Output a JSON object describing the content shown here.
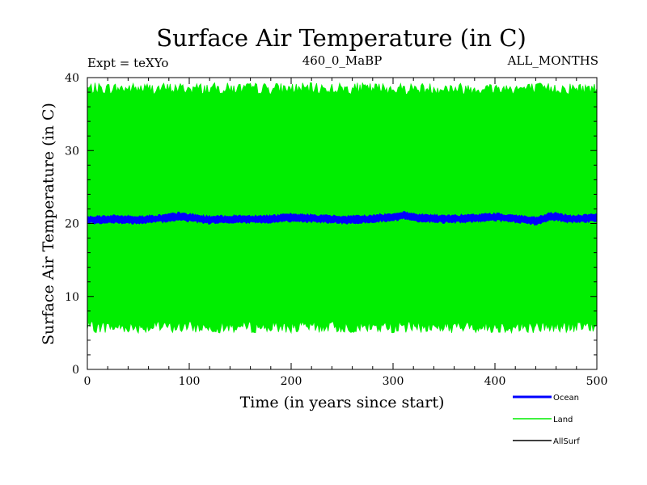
{
  "chart_data": {
    "type": "line",
    "title": "Surface Air Temperature (in C)",
    "header_left": "Expt = teXYo",
    "header_center": "460_0_MaBP",
    "header_right": "ALL_MONTHS",
    "xlabel": "Time (in years since start)",
    "ylabel": "Surface Air Temperature (in C)",
    "xlim": [
      0,
      500
    ],
    "ylim": [
      0,
      40
    ],
    "x_ticks": [
      0,
      100,
      200,
      300,
      400,
      500
    ],
    "y_ticks": [
      0,
      10,
      20,
      30,
      40
    ],
    "grid": false,
    "legend_position": "bottom-right",
    "series": [
      {
        "name": "Land",
        "color": "#00ee00",
        "style": "dense seasonal oscillation",
        "x": [
          0,
          500
        ],
        "upper_envelope": [
          38.5,
          38.5
        ],
        "lower_envelope": [
          5.8,
          5.8
        ],
        "peak_max": 39.6,
        "trough_min": 4.4
      },
      {
        "name": "Ocean",
        "color": "#0000ff",
        "x": [
          0,
          25,
          50,
          75,
          90,
          100,
          120,
          150,
          175,
          200,
          225,
          250,
          275,
          300,
          310,
          325,
          350,
          375,
          400,
          425,
          440,
          455,
          475,
          500
        ],
        "y": [
          20.5,
          20.6,
          20.5,
          20.7,
          21.0,
          20.8,
          20.5,
          20.6,
          20.6,
          20.8,
          20.7,
          20.5,
          20.6,
          20.9,
          21.1,
          20.8,
          20.6,
          20.7,
          20.9,
          20.6,
          20.3,
          21.0,
          20.6,
          20.8
        ],
        "band_width": 0.9
      },
      {
        "name": "AllSurf",
        "color": "#000000",
        "x": [],
        "y": []
      }
    ]
  }
}
